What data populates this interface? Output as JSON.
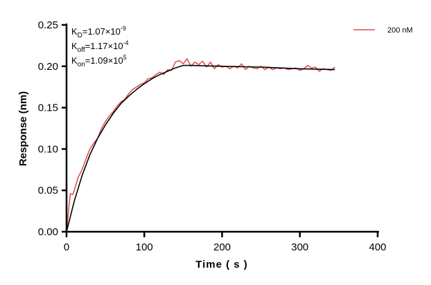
{
  "chart_data": {
    "type": "line",
    "xlabel": "Time ( s )",
    "ylabel": "Response (nm)",
    "xlim": [
      0,
      400
    ],
    "ylim": [
      0,
      0.25
    ],
    "xticks": [
      "0",
      "100",
      "200",
      "300",
      "400"
    ],
    "yticks": [
      "0.00",
      "0.05",
      "0.10",
      "0.15",
      "0.20",
      "0.25"
    ],
    "grid": false,
    "legend_position": "top-right",
    "annotations": [
      {
        "base": "K",
        "sub": "D",
        "value": "=1.07×10",
        "exp": "-9"
      },
      {
        "base": "K",
        "sub": "off",
        "value": "=1.17×10",
        "exp": "-4"
      },
      {
        "base": "K",
        "sub": "on",
        "value": "=1.09×10",
        "exp": "5"
      }
    ],
    "series": [
      {
        "name": "200 nM",
        "color": "#e04848",
        "x": [
          0,
          3,
          5,
          8,
          10,
          15,
          20,
          25,
          30,
          35,
          40,
          45,
          50,
          55,
          60,
          65,
          70,
          75,
          80,
          85,
          90,
          95,
          100,
          105,
          110,
          115,
          120,
          125,
          130,
          135,
          140,
          145,
          150,
          155,
          160,
          165,
          170,
          175,
          180,
          185,
          190,
          195,
          200,
          205,
          210,
          215,
          220,
          225,
          230,
          235,
          240,
          245,
          250,
          255,
          260,
          265,
          270,
          275,
          280,
          285,
          290,
          295,
          300,
          305,
          310,
          315,
          320,
          325,
          330,
          335,
          340,
          345
        ],
        "y": [
          0.0,
          0.03,
          0.046,
          0.045,
          0.05,
          0.066,
          0.075,
          0.088,
          0.1,
          0.107,
          0.113,
          0.125,
          0.133,
          0.14,
          0.145,
          0.152,
          0.157,
          0.16,
          0.167,
          0.172,
          0.175,
          0.178,
          0.18,
          0.185,
          0.186,
          0.19,
          0.193,
          0.19,
          0.196,
          0.195,
          0.205,
          0.207,
          0.203,
          0.209,
          0.2,
          0.205,
          0.202,
          0.206,
          0.199,
          0.205,
          0.197,
          0.202,
          0.199,
          0.2,
          0.197,
          0.2,
          0.198,
          0.203,
          0.196,
          0.2,
          0.198,
          0.197,
          0.2,
          0.196,
          0.199,
          0.196,
          0.198,
          0.197,
          0.198,
          0.196,
          0.197,
          0.198,
          0.195,
          0.197,
          0.201,
          0.198,
          0.199,
          0.194,
          0.197,
          0.196,
          0.195,
          0.199
        ]
      },
      {
        "color": "#000000",
        "x": [
          0,
          10,
          20,
          30,
          40,
          50,
          60,
          70,
          80,
          90,
          100,
          110,
          120,
          130,
          140,
          150,
          160,
          200,
          250,
          300,
          345
        ],
        "y": [
          0,
          0.037,
          0.068,
          0.093,
          0.113,
          0.129,
          0.143,
          0.155,
          0.164,
          0.172,
          0.179,
          0.185,
          0.19,
          0.194,
          0.198,
          0.201,
          0.201,
          0.2,
          0.199,
          0.197,
          0.196
        ]
      }
    ]
  }
}
